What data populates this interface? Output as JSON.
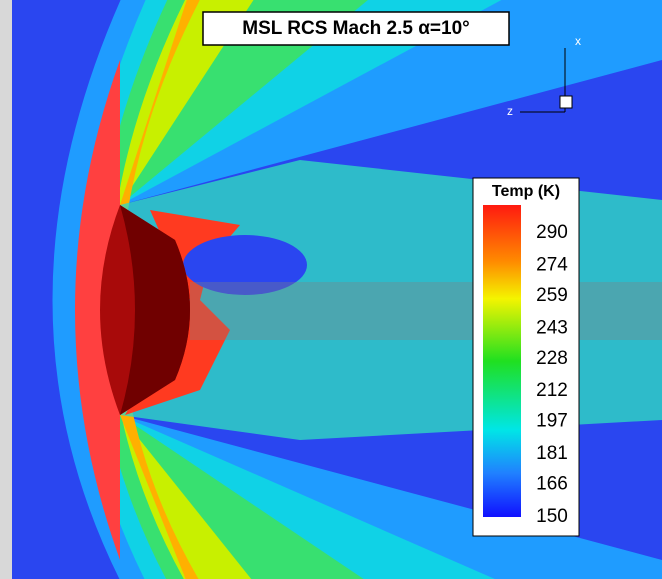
{
  "title": "MSL RCS Mach 2.5 α=10°",
  "axes": {
    "x": "x",
    "z": "z"
  },
  "legend": {
    "title": "Temp (K)",
    "ticks": [
      290,
      274,
      259,
      243,
      228,
      212,
      197,
      181,
      166,
      150
    ]
  }
}
